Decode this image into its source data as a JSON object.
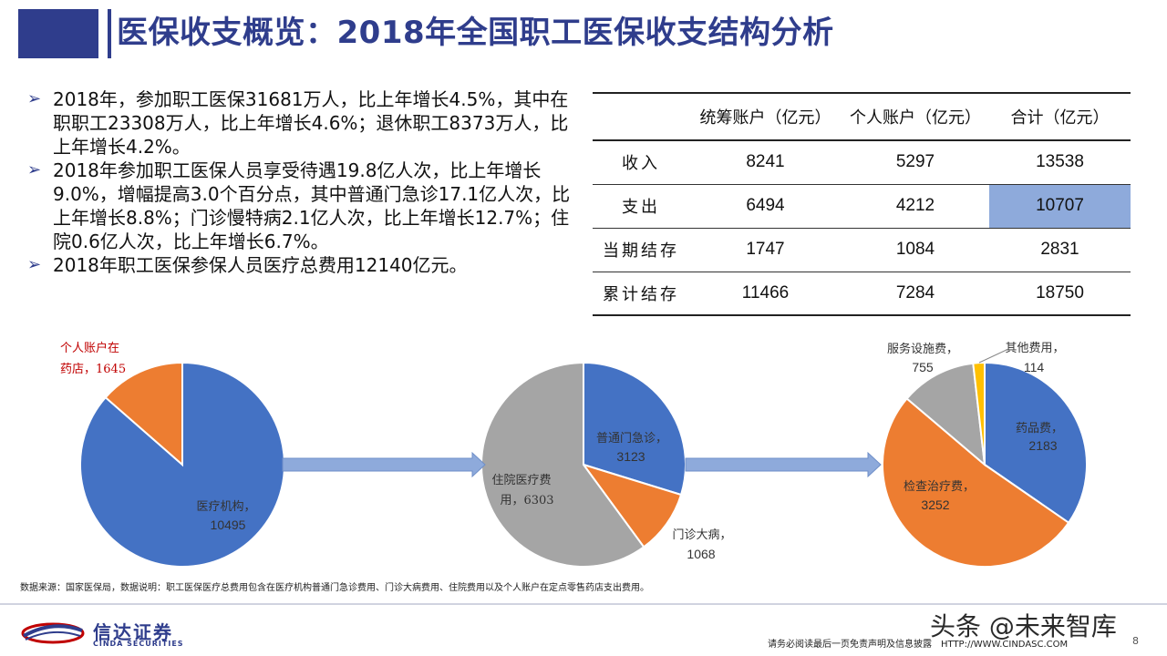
{
  "header": {
    "title": "医保收支概览：2018年全国职工医保收支结构分析"
  },
  "bullets": [
    "2018年，参加职工医保31681万人，比上年增长4.5%，其中在职职工23308万人，比上年增长4.6%；退休职工8373万人，比上年增长4.2%。",
    "2018年参加职工医保人员享受待遇19.8亿人次，比上年增长9.0%，增幅提高3.0个百分点，其中普通门急诊17.1亿人次，比上年增长8.8%；门诊慢特病2.1亿人次，比上年增长12.7%；住院0.6亿人次，比上年增长6.7%。",
    "2018年职工医保参保人员医疗总费用12140亿元。"
  ],
  "table": {
    "headers": [
      "",
      "统筹账户（亿元）",
      "个人账户（亿元）",
      "合计（亿元）"
    ],
    "rows": [
      {
        "label": "收入",
        "values": [
          "8241",
          "5297",
          "13538"
        ]
      },
      {
        "label": "支出",
        "values": [
          "6494",
          "4212",
          "10707"
        ]
      },
      {
        "label": "当期结存",
        "values": [
          "1747",
          "1084",
          "2831"
        ]
      },
      {
        "label": "累计结存",
        "values": [
          "11466",
          "7284",
          "18750"
        ]
      }
    ],
    "highlight_color": "#8eaadb"
  },
  "chart_data": [
    {
      "type": "pie",
      "slices": [
        {
          "label": "医疗机构",
          "value": 10495,
          "color": "#4472c4"
        },
        {
          "label": "个人账户在药店",
          "value": 1645,
          "color": "#ed7d31"
        }
      ]
    },
    {
      "type": "pie",
      "slices": [
        {
          "label": "普通门急诊",
          "value": 3123,
          "color": "#4472c4"
        },
        {
          "label": "门诊大病",
          "value": 1068,
          "color": "#ed7d31"
        },
        {
          "label": "住院医疗费用",
          "value": 6303,
          "color": "#a5a5a5"
        }
      ]
    },
    {
      "type": "pie",
      "slices": [
        {
          "label": "药品费",
          "value": 2183,
          "color": "#4472c4"
        },
        {
          "label": "检查治疗费",
          "value": 3252,
          "color": "#ed7d31"
        },
        {
          "label": "服务设施费",
          "value": 755,
          "color": "#a5a5a5"
        },
        {
          "label": "其他费用",
          "value": 114,
          "color": "#ffc000"
        }
      ]
    }
  ],
  "pie_labels": {
    "p1_personal_a": "个人账户在",
    "p1_personal_b": "药店，1645",
    "p1_hosp_a": "医疗机构，",
    "p1_hosp_b": "10495",
    "p2_outpatient_a": "普通门急诊，",
    "p2_outpatient_b": "3123",
    "p2_major_a": "门诊大病，",
    "p2_major_b": "1068",
    "p2_inpatient_a": "住院医疗费",
    "p2_inpatient_b": "用，6303",
    "p3_drug_a": "药品费，",
    "p3_drug_b": "2183",
    "p3_exam_a": "检查治疗费，",
    "p3_exam_b": "3252",
    "p3_service_a": "服务设施费，",
    "p3_service_b": "755",
    "p3_other_a": "其他费用，",
    "p3_other_b": "114"
  },
  "colors": {
    "brand": "#2f3d8c",
    "arrow": "#8eaadb",
    "red_label": "#c00000"
  },
  "footer": {
    "source": "数据来源：国家医保局，数据说明：职工医保医疗总费用包含在医疗机构普通门急诊费用、门诊大病费用、住院费用以及个人账户在定点零售药店支出费用。",
    "logo_cn": "信达证券",
    "logo_en": "CINDA SECURITIES",
    "disclaimer": "请务必阅读最后一页免责声明及信息披露　HTTP://WWW.CINDASC.COM",
    "page": "8",
    "watermark": "头条 @未来智库"
  }
}
